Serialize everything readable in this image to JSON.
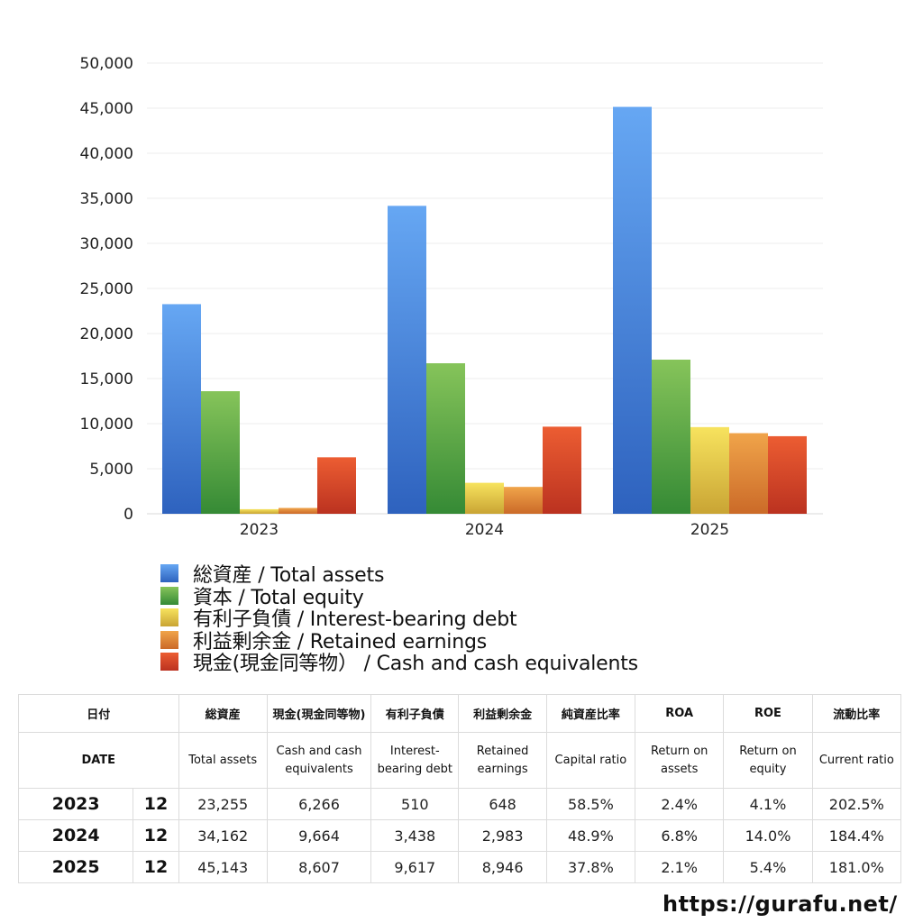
{
  "chart_data": {
    "type": "bar",
    "categories": [
      "2023",
      "2024",
      "2025"
    ],
    "ylim": [
      0,
      50000
    ],
    "yticks": [
      0,
      5000,
      10000,
      15000,
      20000,
      25000,
      30000,
      35000,
      40000,
      45000,
      50000
    ],
    "ytick_labels": [
      "0",
      "5,000",
      "10,000",
      "15,000",
      "20,000",
      "25,000",
      "30,000",
      "35,000",
      "40,000",
      "45,000",
      "50,000"
    ],
    "grid": true,
    "legend_position": "bottom",
    "series": [
      {
        "name": "総資産 / Total assets",
        "values": [
          23255,
          34162,
          45143
        ],
        "colors": [
          "#66a7f3",
          "#2e62be"
        ]
      },
      {
        "name": "資本 / Total equity",
        "values": [
          13600,
          16700,
          17100
        ],
        "colors": [
          "#86c45a",
          "#358a35"
        ]
      },
      {
        "name": "有利子負債 / Interest-bearing debt",
        "values": [
          510,
          3438,
          9617
        ],
        "colors": [
          "#f7e35e",
          "#c9a434"
        ]
      },
      {
        "name": "利益剰余金 / Retained earnings",
        "values": [
          648,
          2983,
          8946
        ],
        "colors": [
          "#f0a44a",
          "#cb6a28"
        ]
      },
      {
        "name": "現金(現金同等物）  /  Cash and cash equivalents",
        "values": [
          6266,
          9664,
          8607
        ],
        "colors": [
          "#ec5d32",
          "#bb3220"
        ]
      }
    ]
  },
  "table": {
    "header_jp": {
      "date": "日付",
      "total_assets": "総資産",
      "cash": "現金(現金同等物)",
      "debt": "有利子負債",
      "retained": "利益剰余金",
      "capital_ratio": "純資産比率",
      "roa": "ROA",
      "roe": "ROE",
      "current_ratio": "流動比率"
    },
    "header_en": {
      "date": "DATE",
      "total_assets": "Total assets",
      "cash": "Cash and cash equivalents",
      "debt": "Interest-bearing debt",
      "retained": "Retained earnings",
      "capital_ratio": "Capital ratio",
      "roa": "Return on assets",
      "roe": "Return on equity",
      "current_ratio": "Current ratio"
    },
    "rows": [
      {
        "year": "2023",
        "month": "12",
        "total_assets": "23,255",
        "cash": "6,266",
        "debt": "510",
        "retained": "648",
        "capital_ratio": "58.5%",
        "roa": "2.4%",
        "roe": "4.1%",
        "current_ratio": "202.5%"
      },
      {
        "year": "2024",
        "month": "12",
        "total_assets": "34,162",
        "cash": "9,664",
        "debt": "3,438",
        "retained": "2,983",
        "capital_ratio": "48.9%",
        "roa": "6.8%",
        "roe": "14.0%",
        "current_ratio": "184.4%"
      },
      {
        "year": "2025",
        "month": "12",
        "total_assets": "45,143",
        "cash": "8,607",
        "debt": "9,617",
        "retained": "8,946",
        "capital_ratio": "37.8%",
        "roa": "2.1%",
        "roe": "5.4%",
        "current_ratio": "181.0%"
      }
    ]
  },
  "footer": {
    "url": "https://gurafu.net/"
  }
}
